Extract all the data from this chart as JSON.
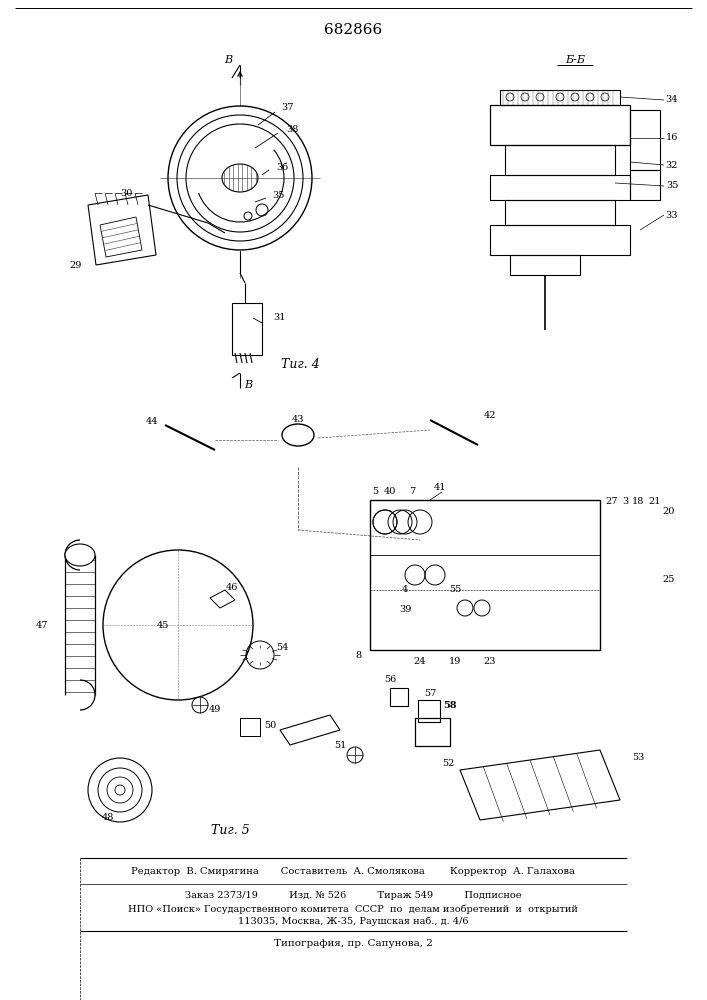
{
  "title": "682866",
  "fig4_label": "Τиг. 4",
  "fig5_label": "Τиг. 5",
  "footer_line1": "Редактор  В. Смирягина       Составитель  А. Смолякова        Корректор  А. Галахова",
  "footer_line2": "Заказ 2373/19          Изд. № 526          Тираж 549          Подписное",
  "footer_line3": "НПО «Поиск» Государственного комитета  СССР  по  делам изобретений  и  открытий",
  "footer_line4": "113035, Москва, Ж-35, Раушская наб., д. 4/6",
  "footer_line5": "Типография, пр. Сапунова, 2",
  "bg_color": "#ffffff"
}
